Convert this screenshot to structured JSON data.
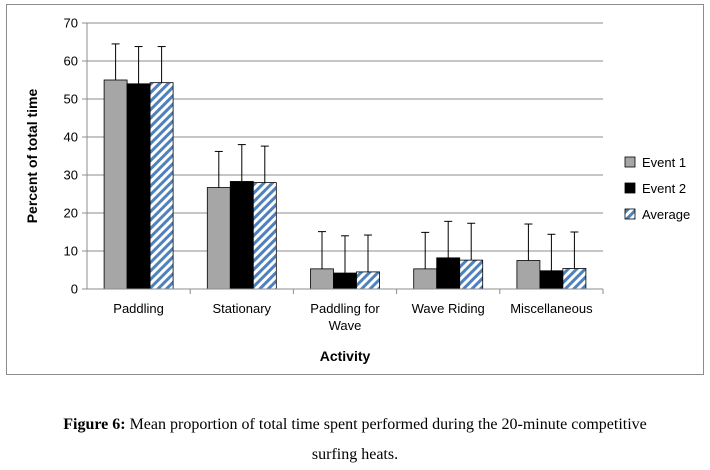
{
  "chart_data": {
    "type": "bar",
    "categories": [
      "Paddling",
      "Stationary",
      "Paddling for Wave",
      "Wave Riding",
      "Miscellaneous"
    ],
    "series": [
      {
        "name": "Event 1",
        "values": [
          55,
          26.7,
          5.3,
          5.3,
          7.5
        ],
        "errors": [
          9.5,
          9.5,
          9.8,
          9.6,
          9.6
        ],
        "color": "#a6a6a6",
        "pattern": "solid"
      },
      {
        "name": "Event 2",
        "values": [
          54,
          28.3,
          4.2,
          8.2,
          4.8
        ],
        "errors": [
          9.8,
          9.7,
          9.8,
          9.6,
          9.6
        ],
        "color": "#000000",
        "pattern": "solid"
      },
      {
        "name": "Average",
        "values": [
          54.3,
          28,
          4.5,
          7.6,
          5.4
        ],
        "errors": [
          9.5,
          9.6,
          9.7,
          9.7,
          9.6
        ],
        "color": "#4f81bd",
        "pattern": "diagonal-stripes"
      }
    ],
    "xlabel": "Activity",
    "ylabel": "Percent of total time",
    "ylim": [
      0,
      70
    ],
    "yticks": [
      0,
      10,
      20,
      30,
      40,
      50,
      60,
      70
    ],
    "grid": true,
    "legend_position": "right"
  },
  "caption": {
    "label": "Figure 6:",
    "text_line1": "Mean proportion of total time spent performed during the 20-minute competitive",
    "text_line2": "surfing heats."
  }
}
